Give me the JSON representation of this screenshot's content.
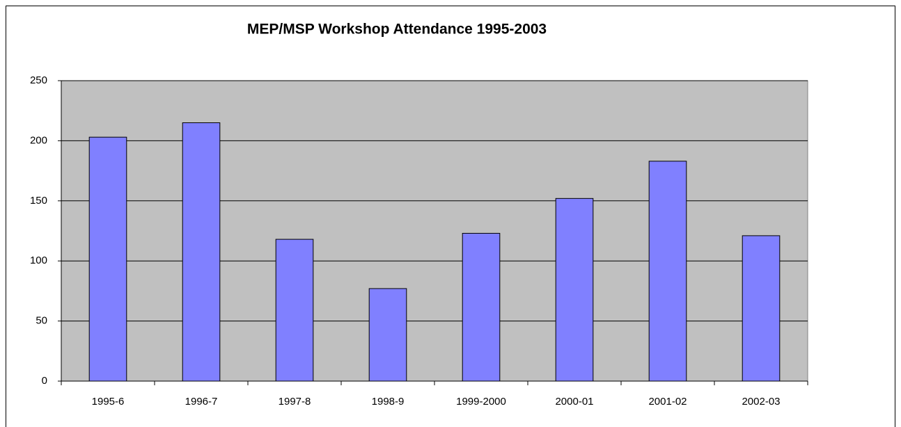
{
  "chart_data": {
    "type": "bar",
    "title": "MEP/MSP Workshop Attendance 1995-2003",
    "categories": [
      "1995-6",
      "1996-7",
      "1997-8",
      "1998-9",
      "1999-2000",
      "2000-01",
      "2001-02",
      "2002-03"
    ],
    "values": [
      203,
      215,
      118,
      77,
      123,
      152,
      183,
      121
    ],
    "color": "#8080ff",
    "ylim": [
      0,
      250
    ],
    "yticks": [
      0,
      50,
      100,
      150,
      200,
      250
    ],
    "grid": true
  }
}
